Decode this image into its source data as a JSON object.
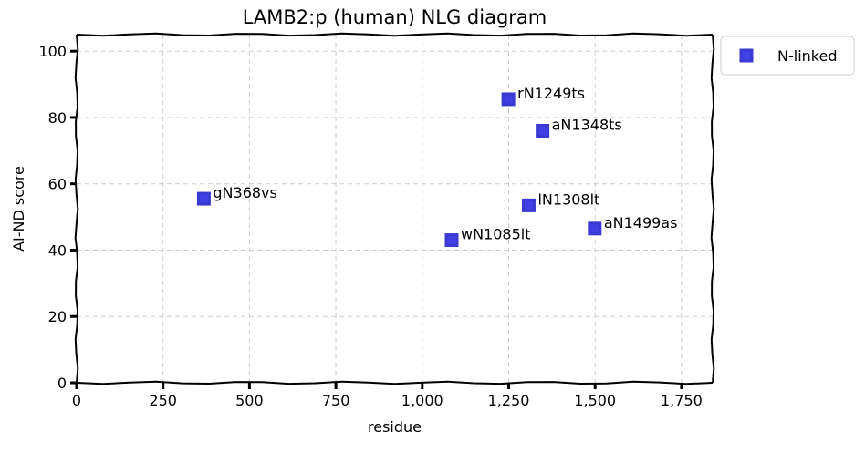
{
  "chart_data": {
    "type": "scatter",
    "title": "LAMB2:p (human) NLG diagram",
    "xlabel": "residue",
    "ylabel": "AI-ND score",
    "xlim": [
      0,
      1840
    ],
    "ylim": [
      0,
      105
    ],
    "xticks": [
      0,
      250,
      500,
      750,
      1000,
      1250,
      1500,
      1750
    ],
    "xtick_labels": [
      "0",
      "250",
      "500",
      "750",
      "1,000",
      "1,250",
      "1,500",
      "1,750"
    ],
    "yticks": [
      0,
      20,
      40,
      60,
      80,
      100
    ],
    "ytick_labels": [
      "0",
      "20",
      "40",
      "60",
      "80",
      "100"
    ],
    "grid": true,
    "legend_position": "outside-top-right",
    "series": [
      {
        "name": "N-linked",
        "color": "#1f1fe0",
        "marker": "square",
        "points": [
          {
            "x": 368,
            "y": 55.5,
            "label": "gN368vs"
          },
          {
            "x": 1085,
            "y": 43,
            "label": "wN1085lt"
          },
          {
            "x": 1249,
            "y": 85.5,
            "label": "rN1249ts"
          },
          {
            "x": 1308,
            "y": 53.5,
            "label": "lN1308lt"
          },
          {
            "x": 1348,
            "y": 76,
            "label": "aN1348ts"
          },
          {
            "x": 1499,
            "y": 46.5,
            "label": "aN1499as"
          }
        ]
      }
    ]
  }
}
